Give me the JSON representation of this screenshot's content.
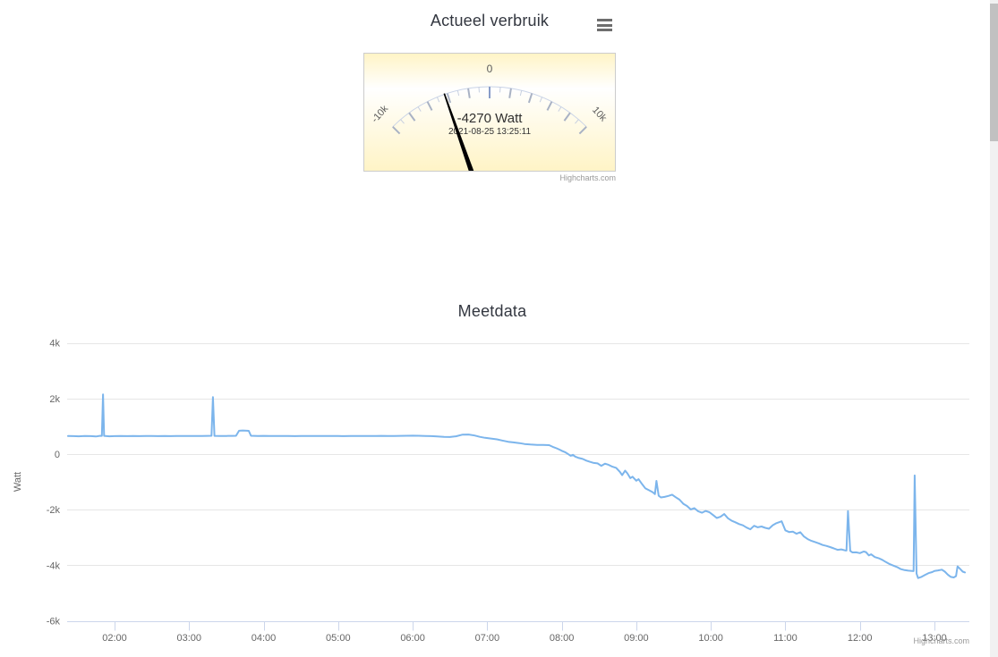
{
  "page": {
    "background": "#ffffff"
  },
  "colors": {
    "series_line": "#7cb5ec",
    "grid": "#e6e6e6",
    "axis_line": "#ccd6eb",
    "axis_label": "#666666",
    "title": "#333740",
    "credits": "#999999",
    "needle": "#000000",
    "pane_border": "#cccccc",
    "gauge_arc": "#c9d3e7",
    "gauge_tick_major": "#a9b2c4",
    "gauge_tick_zero": "#889cc8",
    "gauge_tick_minor": "#c7cfdf",
    "scrollbar_thumb": "#c1c1c1",
    "scrollbar_track": "#f1f1f1"
  },
  "chart_data": [
    {
      "type": "gauge",
      "title": "Actueel verbruik",
      "unit": "Watt",
      "value": -4270,
      "value_label": "-4270 Watt",
      "timestamp_label": "2021-08-25 13:25:11",
      "min": -10000,
      "max": 10000,
      "tick_interval": 2000,
      "minor_tick_interval": 1000,
      "start_angle": -45,
      "end_angle": 45,
      "tick_labels": {
        "min": "-10k",
        "zero": "0",
        "max": "10k"
      },
      "pane_gradient": [
        "#fff4c6",
        "#ffffff",
        "#fff4c6"
      ],
      "menu_icon": "hamburger-icon",
      "credits": "Highcharts.com"
    },
    {
      "type": "line",
      "title": "Meetdata",
      "xlabel": "",
      "ylabel": "Watt",
      "legend": "off",
      "grid": "on",
      "ylim": [
        -6000,
        4000
      ],
      "y_ticks": [
        4000,
        2000,
        0,
        -2000,
        -4000,
        -6000
      ],
      "y_tick_labels": [
        "4k",
        "2k",
        "0",
        "-2k",
        "-4k",
        "-6k"
      ],
      "x_tick_hours": [
        2,
        3,
        4,
        5,
        6,
        7,
        8,
        9,
        10,
        11,
        12,
        13
      ],
      "x_tick_labels": [
        "02:00",
        "03:00",
        "04:00",
        "05:00",
        "06:00",
        "07:00",
        "08:00",
        "09:00",
        "10:00",
        "11:00",
        "12:00",
        "13:00"
      ],
      "xlim_hours": [
        1.375,
        13.41
      ],
      "credits": "Highcharts.com",
      "series": [
        {
          "name": "Meetdata",
          "color": "#7cb5ec",
          "points_hour_watt": [
            [
              1.375,
              650
            ],
            [
              1.45,
              648
            ],
            [
              1.52,
              640
            ],
            [
              1.6,
              652
            ],
            [
              1.68,
              645
            ],
            [
              1.75,
              635
            ],
            [
              1.8,
              655
            ],
            [
              1.83,
              655
            ],
            [
              1.845,
              2150
            ],
            [
              1.86,
              655
            ],
            [
              1.93,
              640
            ],
            [
              2.0,
              648
            ],
            [
              2.08,
              652
            ],
            [
              2.17,
              645
            ],
            [
              2.25,
              650
            ],
            [
              2.33,
              648
            ],
            [
              2.42,
              652
            ],
            [
              2.5,
              650
            ],
            [
              2.58,
              646
            ],
            [
              2.67,
              650
            ],
            [
              2.75,
              648
            ],
            [
              2.83,
              652
            ],
            [
              2.92,
              650
            ],
            [
              3.0,
              654
            ],
            [
              3.08,
              650
            ],
            [
              3.17,
              652
            ],
            [
              3.25,
              655
            ],
            [
              3.3,
              658
            ],
            [
              3.32,
              2050
            ],
            [
              3.34,
              655
            ],
            [
              3.42,
              650
            ],
            [
              3.5,
              652
            ],
            [
              3.58,
              655
            ],
            [
              3.63,
              660
            ],
            [
              3.67,
              840
            ],
            [
              3.72,
              848
            ],
            [
              3.78,
              838
            ],
            [
              3.8,
              835
            ],
            [
              3.83,
              660
            ],
            [
              3.92,
              652
            ],
            [
              4.0,
              655
            ],
            [
              4.08,
              650
            ],
            [
              4.17,
              653
            ],
            [
              4.25,
              650
            ],
            [
              4.33,
              652
            ],
            [
              4.42,
              648
            ],
            [
              4.5,
              651
            ],
            [
              4.58,
              653
            ],
            [
              4.67,
              649
            ],
            [
              4.75,
              652
            ],
            [
              4.83,
              650
            ],
            [
              4.92,
              653
            ],
            [
              5.0,
              651
            ],
            [
              5.08,
              648
            ],
            [
              5.17,
              652
            ],
            [
              5.25,
              650
            ],
            [
              5.33,
              653
            ],
            [
              5.42,
              649
            ],
            [
              5.5,
              652
            ],
            [
              5.58,
              655
            ],
            [
              5.67,
              650
            ],
            [
              5.75,
              653
            ],
            [
              5.83,
              656
            ],
            [
              5.92,
              660
            ],
            [
              6.0,
              662
            ],
            [
              6.08,
              658
            ],
            [
              6.17,
              652
            ],
            [
              6.25,
              645
            ],
            [
              6.33,
              635
            ],
            [
              6.42,
              622
            ],
            [
              6.5,
              615
            ],
            [
              6.58,
              640
            ],
            [
              6.67,
              700
            ],
            [
              6.75,
              705
            ],
            [
              6.83,
              670
            ],
            [
              6.9,
              620
            ],
            [
              6.97,
              585
            ],
            [
              7.05,
              560
            ],
            [
              7.13,
              530
            ],
            [
              7.2,
              490
            ],
            [
              7.28,
              445
            ],
            [
              7.35,
              420
            ],
            [
              7.43,
              395
            ],
            [
              7.5,
              365
            ],
            [
              7.58,
              345
            ],
            [
              7.67,
              330
            ],
            [
              7.75,
              328
            ],
            [
              7.83,
              322
            ],
            [
              7.88,
              260
            ],
            [
              7.93,
              210
            ],
            [
              7.97,
              160
            ],
            [
              8.0,
              120
            ],
            [
              8.05,
              60
            ],
            [
              8.08,
              10
            ],
            [
              8.12,
              -60
            ],
            [
              8.15,
              -25
            ],
            [
              8.18,
              -90
            ],
            [
              8.23,
              -140
            ],
            [
              8.28,
              -175
            ],
            [
              8.33,
              -235
            ],
            [
              8.38,
              -280
            ],
            [
              8.43,
              -320
            ],
            [
              8.48,
              -335
            ],
            [
              8.53,
              -420
            ],
            [
              8.58,
              -345
            ],
            [
              8.63,
              -390
            ],
            [
              8.68,
              -455
            ],
            [
              8.73,
              -495
            ],
            [
              8.78,
              -640
            ],
            [
              8.81,
              -760
            ],
            [
              8.85,
              -595
            ],
            [
              8.88,
              -690
            ],
            [
              8.92,
              -865
            ],
            [
              8.95,
              -815
            ],
            [
              9.0,
              -960
            ],
            [
              9.03,
              -905
            ],
            [
              9.08,
              -1090
            ],
            [
              9.12,
              -1230
            ],
            [
              9.17,
              -1300
            ],
            [
              9.22,
              -1370
            ],
            [
              9.25,
              -1440
            ],
            [
              9.27,
              -965
            ],
            [
              9.3,
              -1500
            ],
            [
              9.33,
              -1560
            ],
            [
              9.38,
              -1540
            ],
            [
              9.43,
              -1505
            ],
            [
              9.48,
              -1460
            ],
            [
              9.53,
              -1555
            ],
            [
              9.58,
              -1640
            ],
            [
              9.63,
              -1790
            ],
            [
              9.68,
              -1865
            ],
            [
              9.73,
              -1990
            ],
            [
              9.78,
              -1945
            ],
            [
              9.83,
              -2060
            ],
            [
              9.88,
              -2110
            ],
            [
              9.93,
              -2045
            ],
            [
              9.98,
              -2090
            ],
            [
              10.03,
              -2195
            ],
            [
              10.08,
              -2300
            ],
            [
              10.13,
              -2255
            ],
            [
              10.18,
              -2160
            ],
            [
              10.23,
              -2310
            ],
            [
              10.28,
              -2400
            ],
            [
              10.33,
              -2455
            ],
            [
              10.38,
              -2520
            ],
            [
              10.43,
              -2565
            ],
            [
              10.48,
              -2645
            ],
            [
              10.53,
              -2705
            ],
            [
              10.58,
              -2580
            ],
            [
              10.63,
              -2635
            ],
            [
              10.68,
              -2605
            ],
            [
              10.73,
              -2655
            ],
            [
              10.78,
              -2685
            ],
            [
              10.83,
              -2560
            ],
            [
              10.88,
              -2485
            ],
            [
              10.95,
              -2420
            ],
            [
              11.0,
              -2745
            ],
            [
              11.05,
              -2805
            ],
            [
              11.1,
              -2790
            ],
            [
              11.15,
              -2865
            ],
            [
              11.2,
              -2810
            ],
            [
              11.25,
              -2965
            ],
            [
              11.3,
              -3060
            ],
            [
              11.35,
              -3125
            ],
            [
              11.4,
              -3165
            ],
            [
              11.45,
              -3215
            ],
            [
              11.5,
              -3270
            ],
            [
              11.55,
              -3305
            ],
            [
              11.6,
              -3345
            ],
            [
              11.65,
              -3395
            ],
            [
              11.7,
              -3445
            ],
            [
              11.75,
              -3430
            ],
            [
              11.8,
              -3465
            ],
            [
              11.82,
              -3470
            ],
            [
              11.84,
              -2050
            ],
            [
              11.87,
              -3485
            ],
            [
              11.9,
              -3540
            ],
            [
              11.95,
              -3535
            ],
            [
              12.0,
              -3565
            ],
            [
              12.05,
              -3505
            ],
            [
              12.08,
              -3525
            ],
            [
              12.12,
              -3645
            ],
            [
              12.15,
              -3605
            ],
            [
              12.2,
              -3705
            ],
            [
              12.25,
              -3745
            ],
            [
              12.3,
              -3805
            ],
            [
              12.35,
              -3885
            ],
            [
              12.4,
              -3960
            ],
            [
              12.45,
              -4015
            ],
            [
              12.5,
              -4065
            ],
            [
              12.55,
              -4140
            ],
            [
              12.6,
              -4175
            ],
            [
              12.65,
              -4195
            ],
            [
              12.7,
              -4205
            ],
            [
              12.72,
              -4210
            ],
            [
              12.735,
              -770
            ],
            [
              12.76,
              -4300
            ],
            [
              12.78,
              -4460
            ],
            [
              12.82,
              -4425
            ],
            [
              12.87,
              -4355
            ],
            [
              12.92,
              -4285
            ],
            [
              12.97,
              -4245
            ],
            [
              13.0,
              -4205
            ],
            [
              13.05,
              -4185
            ],
            [
              13.1,
              -4160
            ],
            [
              13.14,
              -4230
            ],
            [
              13.18,
              -4340
            ],
            [
              13.22,
              -4420
            ],
            [
              13.26,
              -4440
            ],
            [
              13.29,
              -4390
            ],
            [
              13.31,
              -4040
            ],
            [
              13.34,
              -4120
            ],
            [
              13.38,
              -4230
            ],
            [
              13.41,
              -4260
            ]
          ]
        }
      ]
    }
  ]
}
